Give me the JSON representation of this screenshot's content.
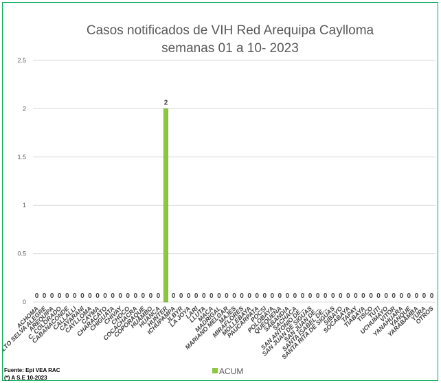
{
  "chart_data": {
    "type": "bar",
    "title": "Casos notificados de VIH Red Arequipa Caylloma",
    "subtitle": "semanas 01 a 10- 2023",
    "ylim": [
      0,
      2.5
    ],
    "yticks": [
      "0",
      "0.5",
      "1",
      "1.5",
      "2",
      "2.5"
    ],
    "grid": true,
    "legend_position": "bottom",
    "categories": [
      "ACHOMA",
      "ALTO SELVA ALEGRE",
      "AREQUIPA",
      "C. COLORADO",
      "CABANACONDE",
      "CALLALLI",
      "CAYARANI",
      "CAYLLOMA",
      "CAYMA",
      "CHARACATO",
      "CHIGUATA",
      "CHIVAY",
      "CHOCO",
      "COCACHACRA",
      "COPORAQUE",
      "HUAMBO",
      "HUANCA",
      "HUNTER",
      "ICHUPAMPA",
      "JLBYR",
      "LA JOYA",
      "LARI",
      "LLUTA",
      "MACA",
      "MADRIGAL",
      "MARIANO MELGAR",
      "MAJES",
      "MIRAFLORES",
      "MOLLEBAYA",
      "PAUCARPATA",
      "POCSI",
      "POLOBAYA",
      "QUEQUEÑA",
      "SABANDIA",
      "SACHACA",
      "SAN ANTONIO DE...",
      "SAN JUAN DE SIGUAS",
      "SAN JUAN DE...",
      "SANTA ISABEL DE...",
      "SANTA RITA DE SIGUAS",
      "SIBAYO",
      "SOCABAYA",
      "TAPAY",
      "TIABAYA",
      "TISCO",
      "TUTI",
      "UCHUMAYO",
      "VITOR",
      "YANAHUARA",
      "YANQUE",
      "YARABAMBA",
      "YURA",
      "OTROS"
    ],
    "series": [
      {
        "name": "ACUM",
        "color": "#8dc63f",
        "values": [
          0,
          0,
          0,
          0,
          0,
          0,
          0,
          0,
          0,
          0,
          0,
          0,
          0,
          0,
          0,
          0,
          0,
          2,
          0,
          0,
          0,
          0,
          0,
          0,
          0,
          0,
          0,
          0,
          0,
          0,
          0,
          0,
          0,
          0,
          0,
          0,
          0,
          0,
          0,
          0,
          0,
          0,
          0,
          0,
          0,
          0,
          0,
          0,
          0,
          0,
          0,
          0,
          0
        ]
      }
    ],
    "source_lines": [
      "Fuente: Epi VEA RAC",
      "(*) A S.E 10-2023"
    ]
  },
  "colors": {
    "frame": "#00a651",
    "grid": "#d9d9d9",
    "bar": "#8dc63f",
    "bar_edge": "#5e9e1e"
  }
}
